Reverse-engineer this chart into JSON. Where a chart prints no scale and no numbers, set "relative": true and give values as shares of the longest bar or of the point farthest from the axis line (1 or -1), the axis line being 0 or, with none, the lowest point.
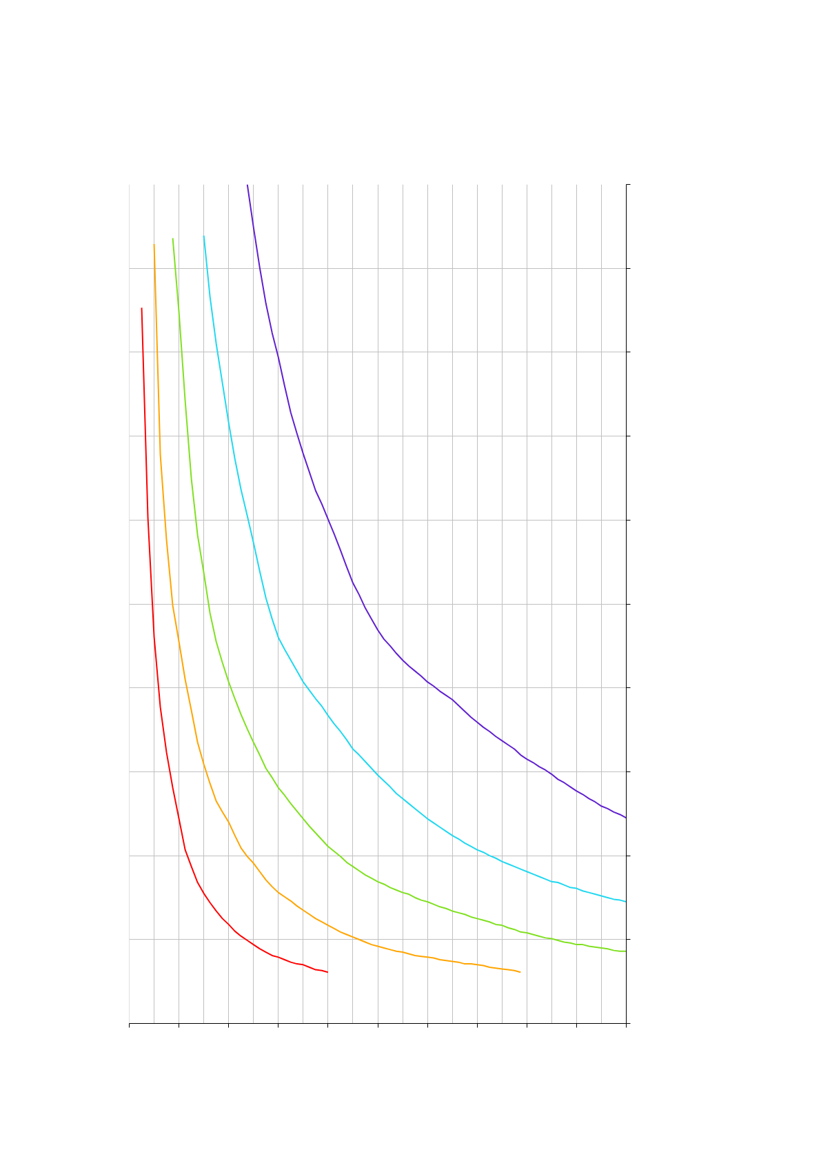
{
  "chart_data": {
    "type": "line",
    "relative": true,
    "grid": true,
    "line_style": "solid",
    "marker": "none",
    "categories": [
      null,
      null,
      null,
      null,
      null,
      null,
      null,
      null,
      null,
      null,
      null,
      null,
      null,
      null,
      null,
      null,
      null,
      null,
      null,
      null,
      null,
      null,
      null,
      null,
      null,
      null,
      null,
      null,
      null,
      null,
      null,
      null,
      null,
      null,
      null,
      null,
      null,
      null,
      null,
      null,
      null,
      null,
      null,
      null,
      null,
      null,
      null,
      null,
      null,
      null,
      null,
      null,
      null,
      null,
      null,
      null,
      null,
      null,
      null,
      null,
      null,
      null,
      null,
      null,
      null,
      null,
      null,
      null,
      null,
      null,
      null,
      null,
      null,
      null,
      null,
      null,
      null,
      null,
      null,
      null,
      null
    ],
    "series": [
      {
        "color": "#ff0000",
        "values": [
          null,
          null,
          0.853,
          0.603,
          0.461,
          0.377,
          0.323,
          0.281,
          0.244,
          0.207,
          0.187,
          0.168,
          0.155,
          0.144,
          0.134,
          0.125,
          0.118,
          0.11,
          0.104,
          0.099,
          0.094,
          0.089,
          0.085,
          0.081,
          0.079,
          0.076,
          0.073,
          0.071,
          0.07,
          0.067,
          0.064,
          0.063,
          0.061,
          null,
          null,
          null,
          null,
          null,
          null,
          null,
          null,
          null,
          null,
          null,
          null,
          null,
          null,
          null,
          null,
          null,
          null,
          null,
          null,
          null,
          null,
          null,
          null,
          null,
          null,
          null,
          null,
          null,
          null,
          null,
          null,
          null,
          null,
          null,
          null,
          null,
          null,
          null,
          null,
          null,
          null,
          null,
          null,
          null,
          null,
          null,
          null
        ]
      },
      {
        "color": "#ffa500",
        "values": [
          null,
          null,
          null,
          null,
          0.929,
          0.678,
          0.576,
          0.498,
          0.455,
          0.41,
          0.373,
          0.335,
          0.309,
          0.286,
          0.265,
          0.252,
          0.24,
          0.224,
          0.209,
          0.199,
          0.191,
          0.181,
          0.171,
          0.163,
          0.156,
          0.151,
          0.146,
          0.14,
          0.135,
          0.13,
          0.125,
          0.121,
          0.117,
          0.113,
          0.109,
          0.106,
          0.103,
          0.1,
          0.097,
          0.094,
          0.092,
          0.09,
          0.088,
          0.086,
          0.085,
          0.083,
          0.081,
          0.08,
          0.079,
          0.078,
          0.076,
          0.075,
          0.074,
          0.073,
          0.071,
          0.071,
          0.07,
          0.069,
          0.067,
          0.066,
          0.065,
          0.064,
          0.063,
          0.061,
          null,
          null,
          null,
          null,
          null,
          null,
          null,
          null,
          null,
          null,
          null,
          null,
          null,
          null,
          null,
          null,
          null
        ]
      },
      {
        "color": "#80e020",
        "values": [
          null,
          null,
          null,
          null,
          null,
          null,
          null,
          0.936,
          0.848,
          0.742,
          0.649,
          0.582,
          0.537,
          0.489,
          0.455,
          0.43,
          0.407,
          0.387,
          0.368,
          0.351,
          0.335,
          0.32,
          0.304,
          0.293,
          0.281,
          0.272,
          0.262,
          0.253,
          0.244,
          0.235,
          0.227,
          0.219,
          0.211,
          0.205,
          0.199,
          0.192,
          0.187,
          0.182,
          0.177,
          0.173,
          0.169,
          0.166,
          0.162,
          0.159,
          0.156,
          0.154,
          0.15,
          0.147,
          0.145,
          0.142,
          0.139,
          0.137,
          0.134,
          0.132,
          0.13,
          0.127,
          0.125,
          0.123,
          0.121,
          0.118,
          0.117,
          0.114,
          0.112,
          0.109,
          0.108,
          0.106,
          0.104,
          0.102,
          0.101,
          0.099,
          0.097,
          0.096,
          0.094,
          0.094,
          0.092,
          0.091,
          0.09,
          0.089,
          0.087,
          0.086,
          0.086
        ]
      },
      {
        "color": "#20d8f0",
        "values": [
          null,
          null,
          null,
          null,
          null,
          null,
          null,
          null,
          null,
          null,
          null,
          null,
          0.939,
          0.866,
          0.81,
          0.763,
          0.716,
          0.673,
          0.636,
          0.605,
          0.573,
          0.539,
          0.507,
          0.482,
          0.46,
          0.446,
          0.433,
          0.42,
          0.407,
          0.397,
          0.387,
          0.378,
          0.367,
          0.357,
          0.348,
          0.338,
          0.327,
          0.32,
          0.312,
          0.304,
          0.296,
          0.289,
          0.282,
          0.274,
          0.268,
          0.262,
          0.256,
          0.25,
          0.244,
          0.239,
          0.234,
          0.229,
          0.224,
          0.22,
          0.215,
          0.211,
          0.207,
          0.204,
          0.2,
          0.197,
          0.193,
          0.19,
          0.187,
          0.184,
          0.181,
          0.178,
          0.175,
          0.172,
          0.169,
          0.168,
          0.165,
          0.162,
          0.161,
          0.158,
          0.156,
          0.154,
          0.152,
          0.15,
          0.148,
          0.147,
          0.145
        ]
      },
      {
        "color": "#6020d0",
        "values": [
          null,
          null,
          null,
          null,
          null,
          null,
          null,
          null,
          null,
          null,
          null,
          null,
          null,
          null,
          null,
          null,
          null,
          null,
          null,
          1.0,
          0.949,
          0.901,
          0.858,
          0.823,
          0.794,
          0.76,
          0.728,
          0.703,
          0.679,
          0.657,
          0.635,
          0.619,
          0.601,
          0.583,
          0.564,
          0.544,
          0.525,
          0.511,
          0.495,
          0.482,
          0.469,
          0.458,
          0.45,
          0.441,
          0.433,
          0.426,
          0.42,
          0.414,
          0.407,
          0.402,
          0.396,
          0.391,
          0.386,
          0.379,
          0.372,
          0.365,
          0.359,
          0.353,
          0.348,
          0.342,
          0.337,
          0.332,
          0.327,
          0.32,
          0.315,
          0.311,
          0.306,
          0.302,
          0.297,
          0.291,
          0.287,
          0.282,
          0.277,
          0.273,
          0.268,
          0.264,
          0.259,
          0.256,
          0.252,
          0.249,
          0.245
        ]
      }
    ]
  }
}
